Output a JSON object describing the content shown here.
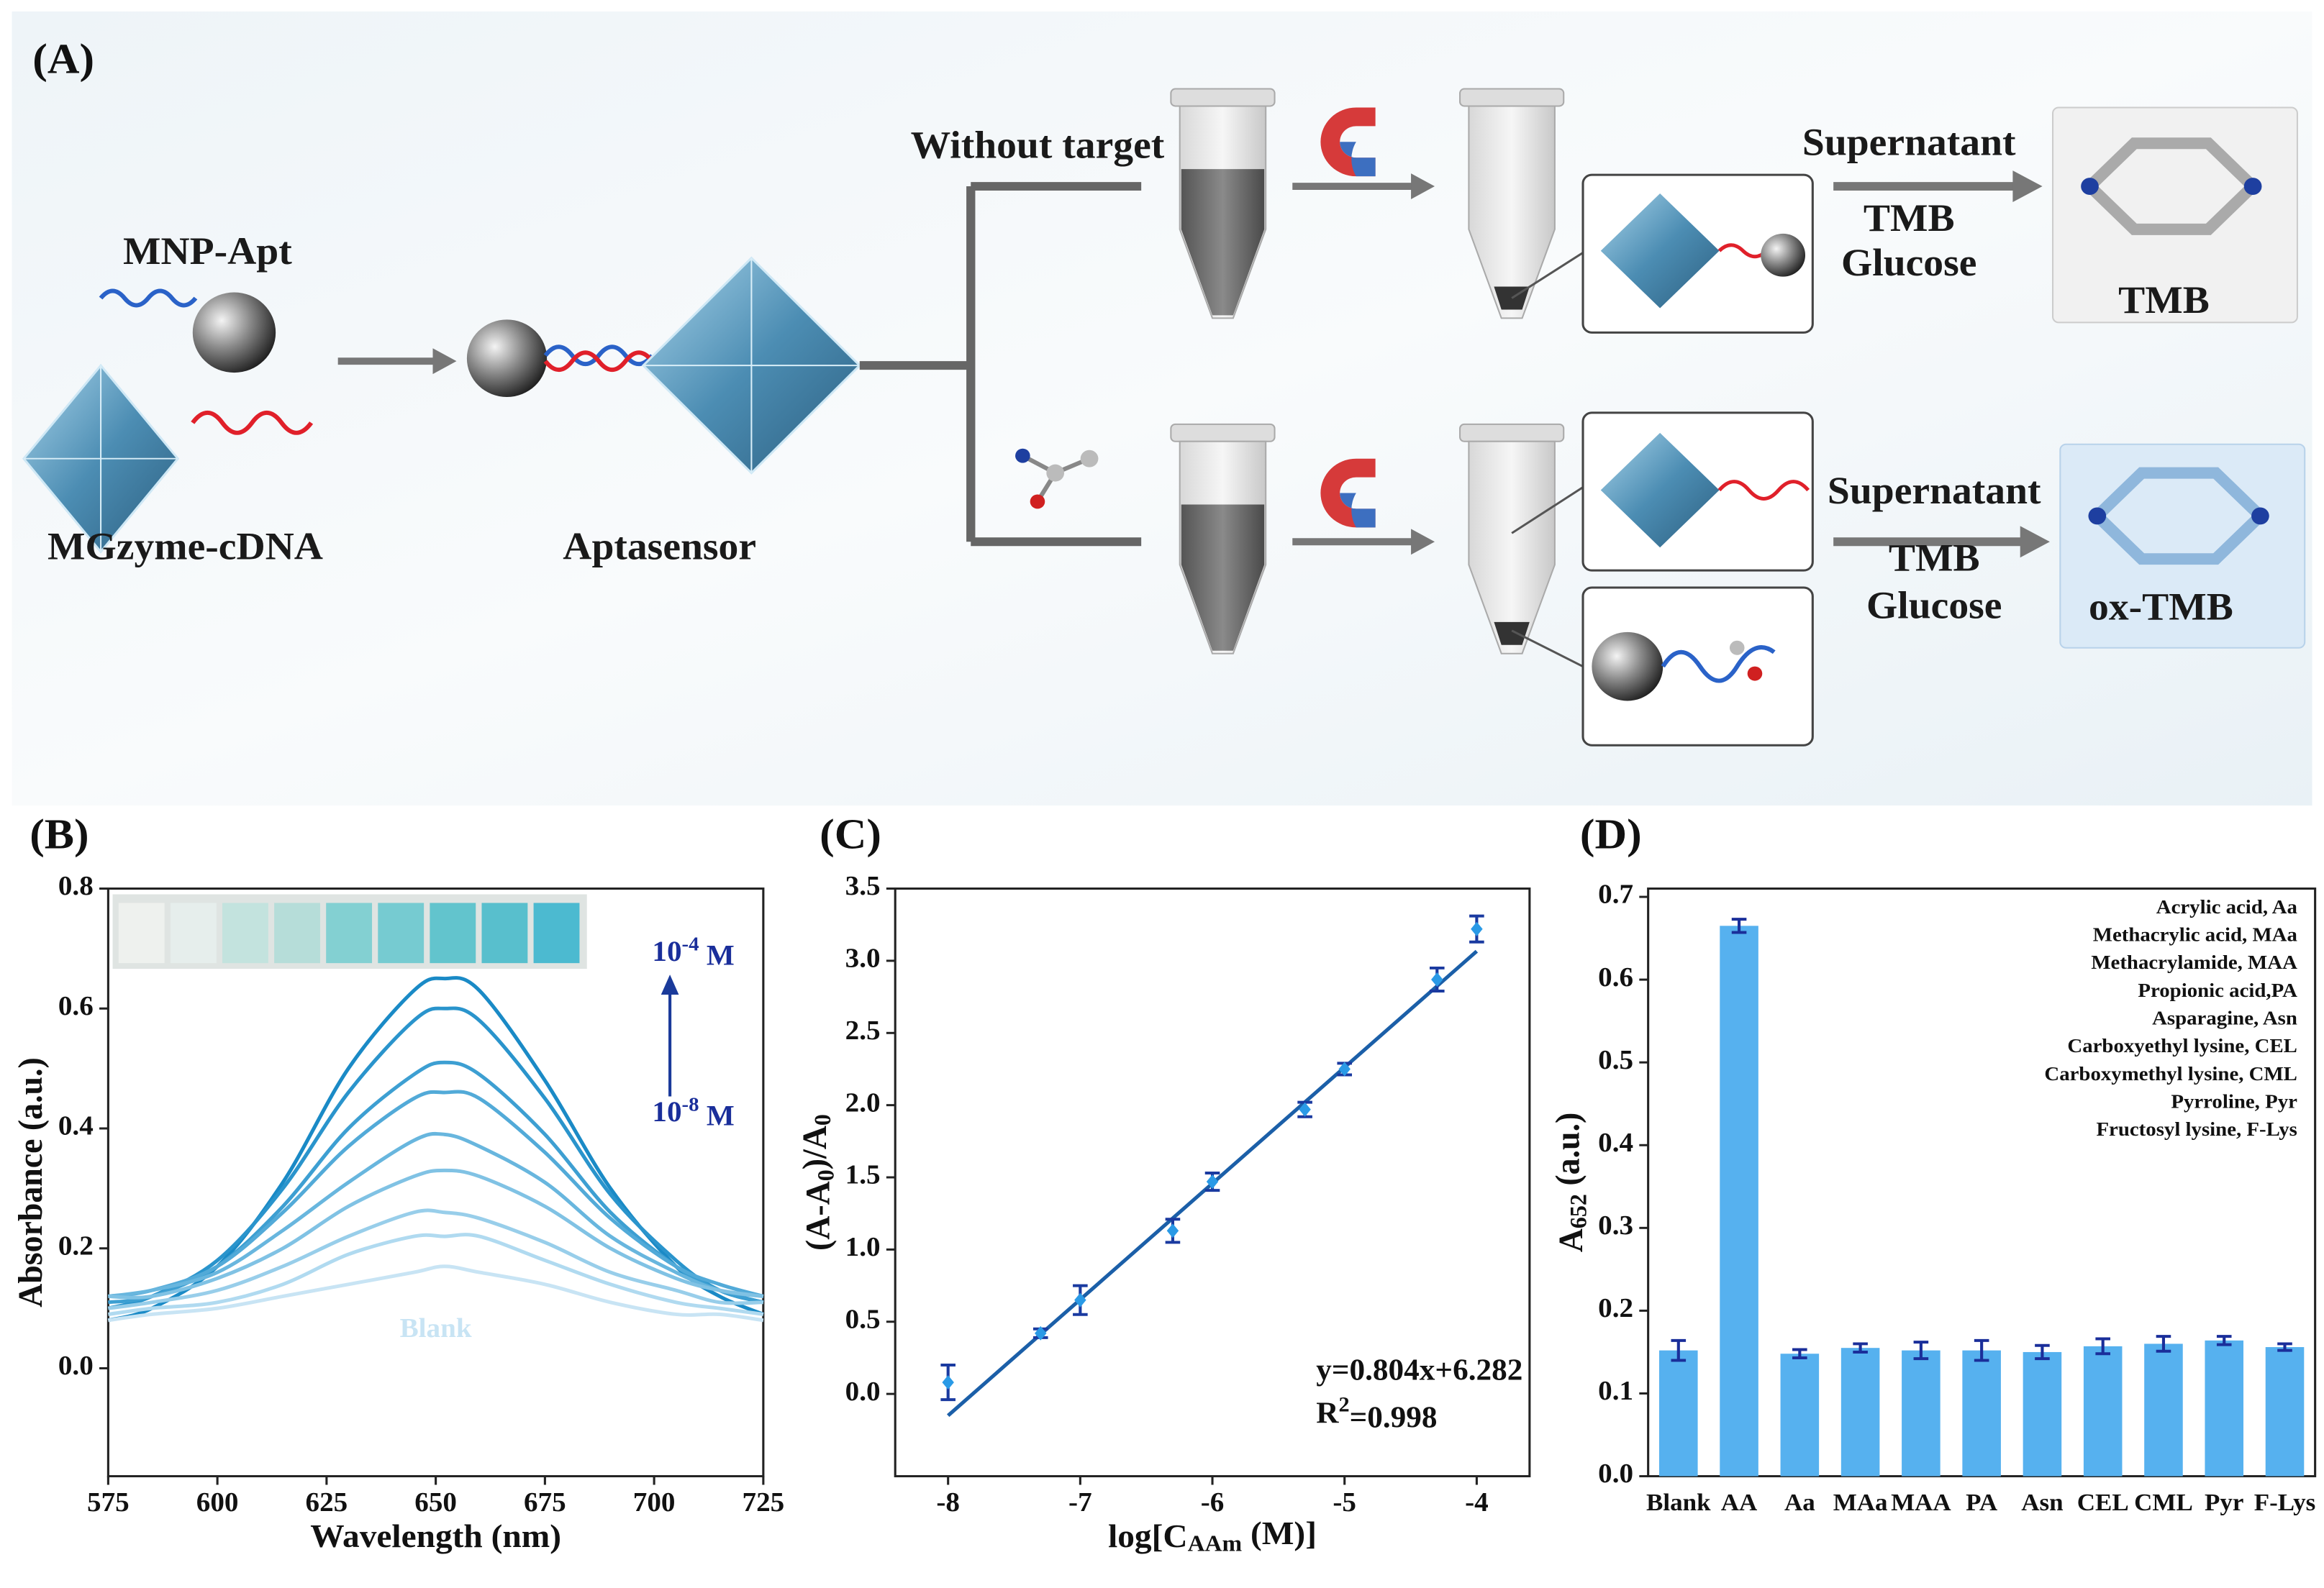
{
  "panel_a": {
    "label": "(A)",
    "mnp_apt": "MNP-Apt",
    "mgzyme": "MGzyme-cDNA",
    "aptasensor": "Aptasensor",
    "without_target": "Without target",
    "top_branch": {
      "step1": "Supernatant",
      "step2": "TMB",
      "step3": "Glucose",
      "result": "TMB"
    },
    "bottom_branch": {
      "step1": "Supernatant",
      "step2": "TMB",
      "step3": "Glucose",
      "result": "ox-TMB"
    }
  },
  "chart_data": [
    {
      "type": "line",
      "panel_label": "(B)",
      "xlabel": "Wavelength (nm)",
      "ylabel": "Absorbance (a.u.)",
      "x": [
        575,
        585,
        600,
        615,
        630,
        645,
        652,
        660,
        675,
        690,
        705,
        715,
        725
      ],
      "xlim": [
        575,
        725
      ],
      "xticks": [
        575,
        600,
        625,
        650,
        675,
        700,
        725
      ],
      "ylim": [
        -0.18,
        0.8
      ],
      "yticks": [
        {
          "value": 0,
          "label": "0.0"
        },
        0.2,
        0.4,
        0.6,
        0.8
      ],
      "series": [
        {
          "color": "#1a8ac6",
          "values": [
            0.08,
            0.1,
            0.17,
            0.31,
            0.5,
            0.63,
            0.65,
            0.63,
            0.48,
            0.3,
            0.17,
            0.12,
            0.09
          ]
        },
        {
          "color": "#2a94cc",
          "values": [
            0.1,
            0.12,
            0.18,
            0.3,
            0.46,
            0.58,
            0.6,
            0.58,
            0.45,
            0.29,
            0.18,
            0.13,
            0.11
          ]
        },
        {
          "color": "#3d9fd2",
          "values": [
            0.11,
            0.12,
            0.17,
            0.27,
            0.4,
            0.49,
            0.51,
            0.49,
            0.39,
            0.26,
            0.17,
            0.13,
            0.11
          ]
        },
        {
          "color": "#52aad8",
          "values": [
            0.12,
            0.13,
            0.17,
            0.26,
            0.37,
            0.45,
            0.46,
            0.45,
            0.36,
            0.25,
            0.17,
            0.14,
            0.12
          ]
        },
        {
          "color": "#68b6de",
          "values": [
            0.12,
            0.13,
            0.16,
            0.23,
            0.31,
            0.38,
            0.39,
            0.37,
            0.31,
            0.22,
            0.16,
            0.13,
            0.12
          ]
        },
        {
          "color": "#80c2e4",
          "values": [
            0.12,
            0.12,
            0.15,
            0.2,
            0.27,
            0.32,
            0.33,
            0.32,
            0.27,
            0.2,
            0.15,
            0.13,
            0.12
          ]
        },
        {
          "color": "#98ceea",
          "values": [
            0.1,
            0.11,
            0.13,
            0.17,
            0.22,
            0.26,
            0.26,
            0.25,
            0.21,
            0.16,
            0.13,
            0.11,
            0.11
          ]
        },
        {
          "color": "#b0daf0",
          "values": [
            0.09,
            0.1,
            0.11,
            0.14,
            0.19,
            0.22,
            0.22,
            0.22,
            0.18,
            0.14,
            0.11,
            0.1,
            0.09
          ]
        },
        {
          "name": "Blank",
          "color": "#c8e4f4",
          "values": [
            0.08,
            0.09,
            0.1,
            0.12,
            0.14,
            0.16,
            0.17,
            0.16,
            0.14,
            0.11,
            0.09,
            0.09,
            0.08
          ]
        }
      ],
      "annotations": {
        "high": [
          "10",
          {
            "sup": "-4"
          },
          " M"
        ],
        "low": [
          "10",
          {
            "sup": "-8"
          },
          " M"
        ]
      }
    },
    {
      "type": "scatter",
      "panel_label": "(C)",
      "xlabel": [
        "log[C",
        {
          "sub": "AAm"
        },
        " (M)]"
      ],
      "ylabel": [
        "(A-A",
        {
          "sub": "0"
        },
        ")/A",
        {
          "sub": "0"
        }
      ],
      "x": [
        -8,
        -7.3,
        -7,
        -6.3,
        -6,
        -5.3,
        -5,
        -4.3,
        -4
      ],
      "values": [
        0.08,
        0.42,
        0.65,
        1.13,
        1.47,
        1.97,
        2.25,
        2.87,
        3.22
      ],
      "errors": [
        0.12,
        0.03,
        0.1,
        0.08,
        0.06,
        0.05,
        0.04,
        0.08,
        0.09
      ],
      "color": "#2a9ae6",
      "error_color": "#1a3aa0",
      "fit_color": "#1b5fa8",
      "fit": {
        "slope": 0.804,
        "intercept": 6.282,
        "x": [
          -8,
          -4
        ]
      },
      "equation": "y=0.804x+6.282",
      "r2": [
        "R",
        {
          "sup": "2"
        },
        "=0.998"
      ],
      "xlim": [
        -8.4,
        -3.6
      ],
      "xticks": [
        -8,
        -7,
        -6,
        -5,
        -4
      ],
      "ylim": [
        -0.57,
        3.5
      ],
      "yticks": [
        {
          "value": 0,
          "label": "0.0"
        },
        0.5,
        {
          "value": 1,
          "label": "1.0"
        },
        1.5,
        {
          "value": 2,
          "label": "2.0"
        },
        2.5,
        {
          "value": 3,
          "label": "3.0"
        },
        3.5
      ]
    },
    {
      "type": "bar",
      "panel_label": "(D)",
      "ylabel": [
        "A",
        {
          "sub": "652"
        },
        " (a.u.)"
      ],
      "categories": [
        "Blank",
        "AA",
        "Aa",
        "MAa",
        "MAA",
        "PA",
        "Asn",
        "CEL",
        "CML",
        "Pyr",
        "F-Lys"
      ],
      "values": [
        0.152,
        0.665,
        0.148,
        0.155,
        0.152,
        0.152,
        0.15,
        0.157,
        0.16,
        0.164,
        0.156
      ],
      "errors": [
        0.012,
        0.008,
        0.005,
        0.005,
        0.01,
        0.012,
        0.008,
        0.009,
        0.009,
        0.005,
        0.004
      ],
      "color": "#56b1ef",
      "error_color": "#1a2e9a",
      "ylim": [
        0,
        0.71
      ],
      "yticks": [
        {
          "value": 0,
          "label": "0.0"
        },
        0.1,
        0.2,
        0.3,
        0.4,
        0.5,
        0.6,
        0.7
      ],
      "notes": [
        "Acrylic acid, Aa",
        "Methacrylic acid, MAa",
        "Methacrylamide, MAA",
        "Propionic acid,PA",
        "Asparagine, Asn",
        "Carboxyethyl lysine, CEL",
        "Carboxymethyl lysine, CML",
        "Pyrroline, Pyr",
        "Fructosyl lysine, F-Lys"
      ]
    }
  ]
}
